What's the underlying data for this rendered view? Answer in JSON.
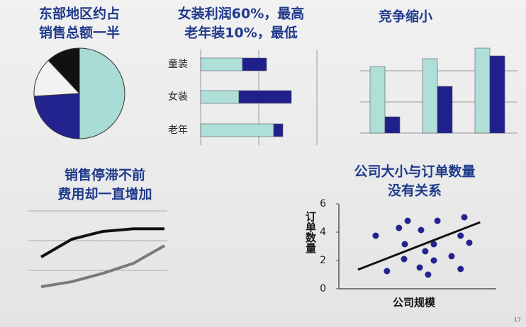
{
  "chart_data": [
    {
      "type": "pie",
      "title": [
        "东部地区约占",
        "销售总额一半"
      ],
      "values": [
        50,
        24,
        14,
        12
      ],
      "colors": [
        "#a9dcd4",
        "#23238f",
        "#f2f2f2",
        "#111111"
      ]
    },
    {
      "type": "hbar",
      "title": [
        "女装利润60%，最高",
        "老年装10%，最低"
      ],
      "categories": [
        "童装",
        "女装",
        "老年"
      ],
      "series": [
        {
          "color": "#aee0d8",
          "values": [
            59,
            54,
            103
          ]
        },
        {
          "color": "#20208c",
          "values": [
            34,
            74,
            13
          ]
        }
      ],
      "xlim": [
        0,
        164
      ],
      "xticks": [
        0,
        82,
        164
      ],
      "grid": true
    },
    {
      "type": "bar",
      "title": [
        "竞争缩小"
      ],
      "categories": [
        null,
        null,
        null
      ],
      "series": [
        {
          "color": "#aee0d8",
          "values": [
            94,
            105,
            120
          ]
        },
        {
          "color": "#20208c",
          "values": [
            23,
            66,
            109
          ]
        }
      ],
      "ylim": [
        0,
        120
      ],
      "yticks": [
        0,
        44,
        88
      ],
      "grid": true
    },
    {
      "type": "line",
      "title": [
        "销售停滞不前",
        "费用却一直增加"
      ],
      "categories": [
        null,
        null,
        null,
        null,
        null
      ],
      "series": [
        {
          "color": "#111111",
          "values": [
            1.45,
            2.05,
            2.31,
            2.4,
            2.4
          ]
        },
        {
          "color": "#7a7a7a",
          "values": [
            0.45,
            0.62,
            0.9,
            1.24,
            1.83
          ]
        }
      ],
      "ylim": [
        0,
        3
      ],
      "yticks": [
        1,
        2,
        3
      ],
      "grid": true
    },
    {
      "type": "scatter",
      "title": [
        "公司大小与订单数量",
        "没有关系"
      ],
      "x_label": "公司规模",
      "y_label": "订单数量",
      "color": "#23238f",
      "x": [
        2.45,
        3.2,
        4.0,
        4.58,
        4.39,
        4.34,
        5.47,
        5.38,
        5.75,
        5.94,
        6.32,
        6.32,
        6.56,
        7.5,
        8.1,
        8.35,
        8.1,
        8.68
      ],
      "y": [
        3.75,
        1.25,
        4.3,
        4.8,
        3.15,
        2.1,
        4.15,
        1.5,
        2.65,
        1.0,
        3.15,
        2.0,
        4.8,
        2.3,
        1.4,
        5.05,
        3.75,
        3.25
      ],
      "trend": {
        "x": [
          1.27,
          9.4
        ],
        "y": [
          1.35,
          4.7
        ]
      },
      "xlim": [
        0,
        10
      ],
      "ylim": [
        0,
        6
      ],
      "yticks": [
        0,
        2,
        4,
        6
      ]
    }
  ],
  "page_number": "17"
}
